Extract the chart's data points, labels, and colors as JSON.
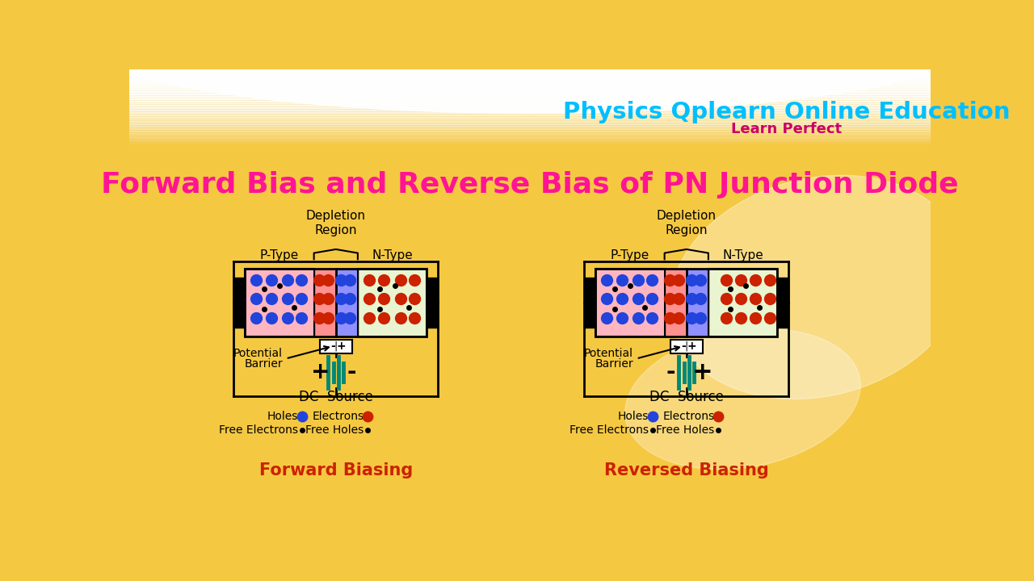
{
  "title": "Forward Bias and Reverse Bias of PN Junction Diode",
  "title_color": "#FF1493",
  "header_text": "Physics Qplearn Online Education",
  "header_color": "#00BFFF",
  "subheader_text": "Learn Perfect",
  "subheader_color": "#CC0066",
  "forward_label": "Forward Biasing",
  "reverse_label": "Reversed Biasing",
  "label_color": "#CC2200",
  "p_type_color": "#FFB6C1",
  "n_type_color": "#E8F5D0",
  "depletion_left_color": "#FF9090",
  "depletion_right_color": "#9090FF",
  "hole_color": "#2244DD",
  "electron_color": "#CC2200",
  "battery_color": "#008877",
  "bg_color": "#F5C842",
  "white_color": "#FFFFFF"
}
